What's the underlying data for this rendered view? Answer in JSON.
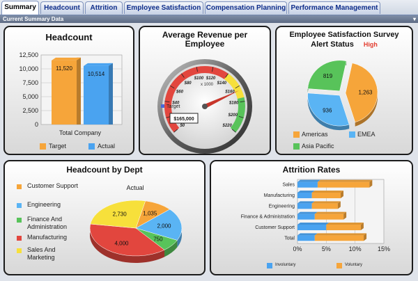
{
  "tabs": [
    {
      "label": "Summary"
    },
    {
      "label": "Headcount"
    },
    {
      "label": "Attrition"
    },
    {
      "label": "Employee Satisfaction"
    },
    {
      "label": "Compensation Planning"
    },
    {
      "label": "Performance Management"
    }
  ],
  "section_title": "Current Summary Data",
  "colors": {
    "orange": "#f6a53a",
    "blue": "#4aa3f0",
    "green": "#58c35a",
    "yellow": "#f7e03b",
    "red": "#e2463e",
    "light_blue": "#5ab4f4"
  },
  "headcount": {
    "title": "Headcount",
    "category": "Total Company",
    "legend_target": "Target",
    "legend_actual": "Actual",
    "y_ticks": [
      "12,500",
      "10,000",
      "7,500",
      "5,000",
      "2,500",
      "0"
    ]
  },
  "revenue": {
    "title_line1": "Average Revenue per",
    "title_line2": "Employee",
    "gauge_ticks": [
      "$0",
      "$20",
      "$40",
      "$60",
      "$80",
      "$100",
      "$120",
      "$140",
      "$160",
      "$180",
      "$200",
      "$220"
    ],
    "multiplier": "x 1000",
    "target_label": "Target",
    "value_readout": "$165,000"
  },
  "satisfaction": {
    "title_line1": "Employee Satisfaction Survey",
    "title_line2": "Alert Status",
    "alert": "High",
    "legend": [
      "Americas",
      "EMEA",
      "Asia Pacific"
    ]
  },
  "dept": {
    "title": "Headcount by Dept",
    "chart_label": "Actual",
    "legend": [
      "Customer Support",
      "Engineering",
      "Finance And Administration",
      "Manufacturing",
      "Sales And Marketing"
    ]
  },
  "attrition": {
    "title": "Attrition Rates",
    "x_ticks": [
      "0%",
      "5%",
      "10%",
      "15%"
    ],
    "legend_vol": "Voluntary",
    "legend_invol": "Involuntary"
  },
  "chart_data": [
    {
      "type": "bar",
      "title": "Headcount",
      "categories": [
        "Total Company"
      ],
      "series": [
        {
          "name": "Target",
          "values": [
            11520
          ]
        },
        {
          "name": "Actual",
          "values": [
            10514
          ]
        }
      ],
      "data_labels": [
        "11,520",
        "10,514"
      ],
      "ylim": [
        0,
        12500
      ],
      "xlabel": "",
      "ylabel": ""
    },
    {
      "type": "pie",
      "title": "Employee Satisfaction Survey Alert Status",
      "categories": [
        "Americas",
        "EMEA",
        "Asia Pacific"
      ],
      "values": [
        1263,
        936,
        819
      ],
      "data_labels": [
        "1,263",
        "936",
        "819"
      ]
    },
    {
      "type": "pie",
      "title": "Headcount by Dept",
      "subtitle": "Actual",
      "categories": [
        "Customer Support",
        "Engineering",
        "Finance And Administration",
        "Manufacturing",
        "Sales And Marketing"
      ],
      "values": [
        1035,
        2000,
        750,
        4000,
        2730
      ],
      "data_labels": [
        "1,035",
        "2,000",
        "750",
        "4,000",
        "2,730"
      ]
    },
    {
      "type": "bar",
      "orientation": "horizontal",
      "stacked": true,
      "title": "Attrition Rates",
      "categories": [
        "Sales",
        "Manufacturing",
        "Engineering",
        "Finance & Administration",
        "Customer Support",
        "Total"
      ],
      "series": [
        {
          "name": "Involuntary",
          "values": [
            3.5,
            2.5,
            2.5,
            3.0,
            5.0,
            3.0
          ]
        },
        {
          "name": "Voluntary",
          "values": [
            9.0,
            5.0,
            4.5,
            5.0,
            6.0,
            8.5
          ]
        }
      ],
      "xlim": [
        0,
        15
      ],
      "xlabel": "",
      "ylabel": ""
    }
  ]
}
